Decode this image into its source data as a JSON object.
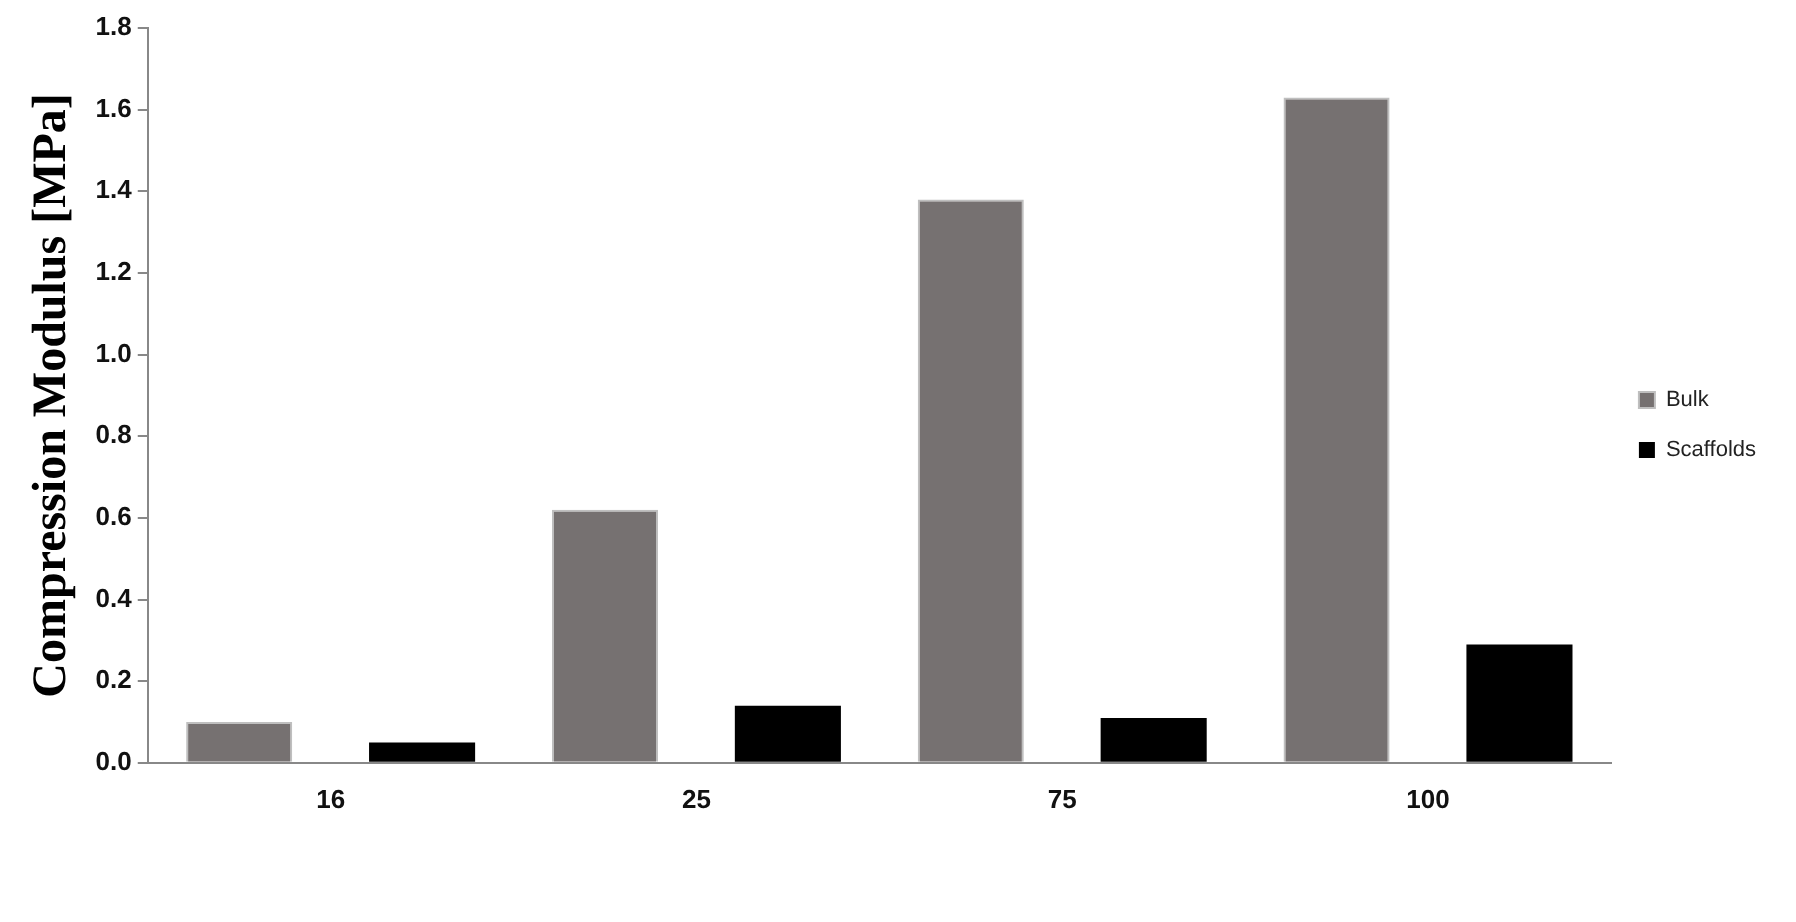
{
  "chart_data": {
    "type": "bar",
    "ylabel": "Compression Modulus [MPa]",
    "categories": [
      "16",
      "25",
      "75",
      "100"
    ],
    "series": [
      {
        "name": "Bulk",
        "color": "#767171",
        "values": [
          0.1,
          0.62,
          1.38,
          1.63
        ]
      },
      {
        "name": "Scaffolds",
        "color": "#000000",
        "values": [
          0.05,
          0.14,
          0.11,
          0.29
        ]
      }
    ],
    "ylim": [
      0,
      1.8
    ],
    "yticks": [
      {
        "value": 0,
        "label": "0.0"
      },
      {
        "value": 0.2,
        "label": "0.2"
      },
      {
        "value": 0.4,
        "label": "0.4"
      },
      {
        "value": 0.6,
        "label": "0.6"
      },
      {
        "value": 0.8,
        "label": "0.8"
      },
      {
        "value": 1,
        "label": "1.0"
      },
      {
        "value": 1.2,
        "label": "1.2"
      },
      {
        "value": 1.4,
        "label": "1.4"
      },
      {
        "value": 1.6,
        "label": "1.6"
      },
      {
        "value": 1.8,
        "label": "1.8"
      }
    ],
    "grid": false,
    "legend": "right"
  }
}
